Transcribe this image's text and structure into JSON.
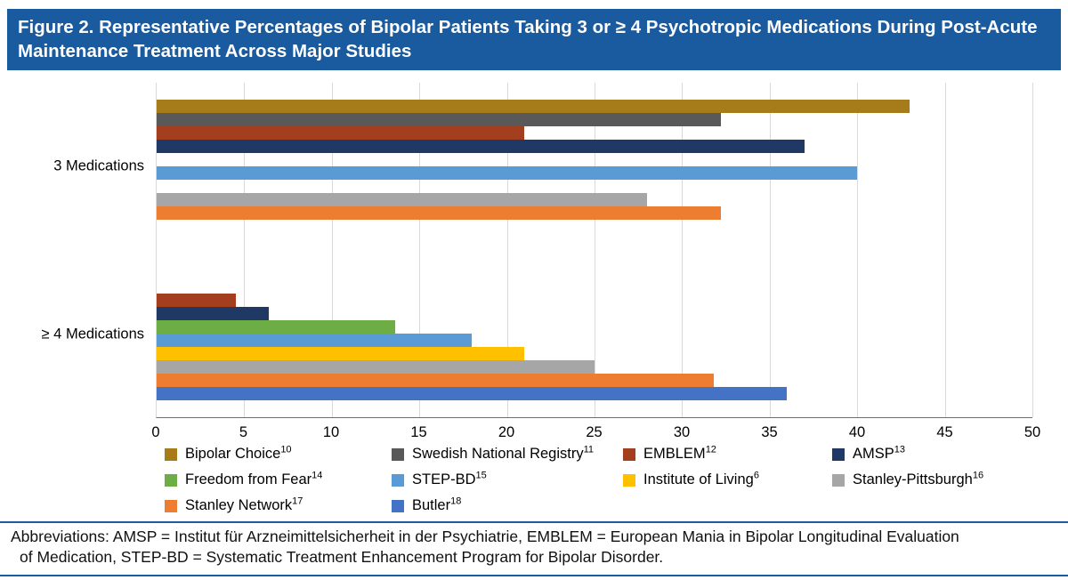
{
  "figure": {
    "title": "Figure 2. Representative Percentages of Bipolar Patients Taking 3 or ≥ 4 Psychotropic Medications During Post-Acute Maintenance Treatment Across Major Studies",
    "abbreviations_lines": [
      "Abbreviations: AMSP = Institut für Arzneimittelsicherheit in der Psychiatrie, EMBLEM = European Mania in Bipolar Longitudinal Evaluation",
      "of Medication, STEP-BD = Systematic Treatment Enhancement Program for Bipolar Disorder."
    ]
  },
  "colors": {
    "banner": "#1A5A9E",
    "divider": "#1A5A9E",
    "gridline": "#D9D9D9",
    "axis": "#6E6E6E"
  },
  "chart_data": {
    "type": "bar",
    "orientation": "horizontal",
    "title": "Representative Percentages of Bipolar Patients Taking 3 or ≥ 4 Psychotropic Medications During Post-Acute Maintenance Treatment Across Major Studies",
    "xlabel": "",
    "ylabel": "",
    "xlim": [
      0,
      50
    ],
    "x_ticks": [
      0,
      5,
      10,
      15,
      20,
      25,
      30,
      35,
      40,
      45,
      50
    ],
    "grid": true,
    "legend_position": "bottom",
    "series": [
      {
        "name": "Bipolar Choice",
        "ref": "10",
        "color": "#A67C1B"
      },
      {
        "name": "Swedish National Registry",
        "ref": "11",
        "color": "#595959"
      },
      {
        "name": "EMBLEM",
        "ref": "12",
        "color": "#A33E1F"
      },
      {
        "name": "AMSP",
        "ref": "13",
        "color": "#1F3864"
      },
      {
        "name": "Freedom from Fear",
        "ref": "14",
        "color": "#6CAD45"
      },
      {
        "name": "STEP-BD",
        "ref": "15",
        "color": "#5B9BD5"
      },
      {
        "name": "Institute of Living",
        "ref": "6",
        "color": "#FFC000"
      },
      {
        "name": "Stanley-Pittsburgh",
        "ref": "16",
        "color": "#A6A6A6"
      },
      {
        "name": "Stanley Network",
        "ref": "17",
        "color": "#ED7D31"
      },
      {
        "name": "Butler",
        "ref": "18",
        "color": "#4472C4"
      }
    ],
    "groups": [
      {
        "label": "3 Medications",
        "values": [
          43,
          32.2,
          21,
          37,
          null,
          40,
          null,
          28,
          32.2,
          null
        ]
      },
      {
        "label": "≥ 4 Medications",
        "values": [
          null,
          null,
          4.5,
          6.4,
          13.6,
          18,
          21,
          25,
          31.8,
          36
        ]
      }
    ]
  }
}
